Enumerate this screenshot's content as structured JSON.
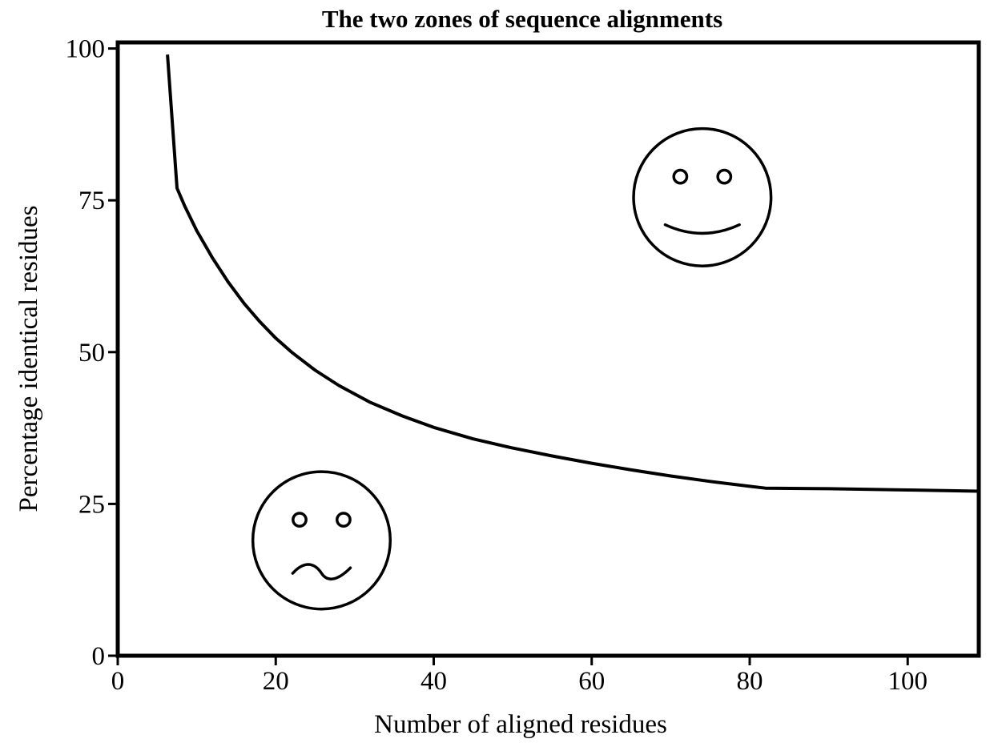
{
  "chart_data": {
    "type": "line",
    "title": "The two zones of sequence alignments",
    "xlabel": "Number of aligned residues",
    "ylabel": "Percentage identical residues",
    "xlim": [
      0,
      109
    ],
    "ylim": [
      0,
      101
    ],
    "x_ticks": [
      "0",
      "20",
      "40",
      "60",
      "80",
      "100"
    ],
    "y_ticks": [
      "0",
      "25",
      "50",
      "75",
      "100"
    ],
    "grid": false,
    "series": [
      {
        "points": [
          [
            6.3,
            99
          ],
          [
            7.5,
            77
          ],
          [
            8.5,
            74
          ],
          [
            10,
            70
          ],
          [
            12,
            65.5
          ],
          [
            14,
            61.5
          ],
          [
            16,
            58
          ],
          [
            18,
            55
          ],
          [
            20,
            52.3
          ],
          [
            22,
            50
          ],
          [
            25,
            47
          ],
          [
            28,
            44.5
          ],
          [
            32,
            41.7
          ],
          [
            36,
            39.5
          ],
          [
            40,
            37.6
          ],
          [
            45,
            35.7
          ],
          [
            50,
            34.2
          ],
          [
            55,
            32.9
          ],
          [
            60,
            31.7
          ],
          [
            65,
            30.6
          ],
          [
            70,
            29.6
          ],
          [
            75,
            28.7
          ],
          [
            80,
            27.9
          ],
          [
            82,
            27.6
          ],
          [
            90,
            27.5
          ],
          [
            100,
            27.3
          ],
          [
            109,
            27.1
          ]
        ]
      }
    ],
    "annotations": [
      {
        "icon": "happy-face-icon",
        "x": 74,
        "y": 75.5,
        "radius": 8.7
      },
      {
        "icon": "sad-face-icon",
        "x": 25.8,
        "y": 19,
        "radius": 8.7
      }
    ],
    "colors": {
      "line": "#000000",
      "background": "#ffffff"
    }
  }
}
